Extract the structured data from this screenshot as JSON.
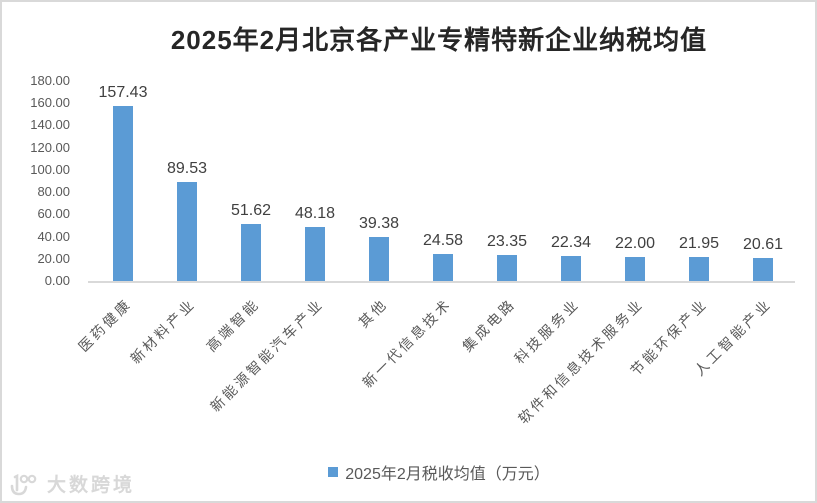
{
  "title": "2025年2月北京各产业专精特新企业纳税均值",
  "legend": {
    "label": "2025年2月税收均值（万元）"
  },
  "watermark": {
    "text": "大数跨境"
  },
  "colors": {
    "bar": "#5b9bd5",
    "axis_line": "#d9d9d9",
    "tick_text": "#595959",
    "data_label": "#404040",
    "title_text": "#262626",
    "frame": "#d9d9d9",
    "watermark": "#d8d8d8"
  },
  "chart_data": {
    "type": "bar",
    "title": "2025年2月北京各产业专精特新企业纳税均值",
    "categories": [
      "医药健康",
      "新材料产业",
      "高端智能",
      "新能源智能汽车产业",
      "其他",
      "新一代信息技术",
      "集成电路",
      "科技服务业",
      "软件和信息技术服务业",
      "节能环保产业",
      "人工智能产业"
    ],
    "values": [
      157.43,
      89.53,
      51.62,
      48.18,
      39.38,
      24.58,
      23.35,
      22.34,
      22.0,
      21.95,
      20.61
    ],
    "value_labels": [
      "157.43",
      "89.53",
      "51.62",
      "48.18",
      "39.38",
      "24.58",
      "23.35",
      "22.34",
      "22.00",
      "21.95",
      "20.61"
    ],
    "series": [
      {
        "name": "2025年2月税收均值（万元）",
        "values": [
          157.43,
          89.53,
          51.62,
          48.18,
          39.38,
          24.58,
          23.35,
          22.34,
          22.0,
          21.95,
          20.61
        ]
      }
    ],
    "xlabel": "",
    "ylabel": "",
    "ylim": [
      0,
      180
    ],
    "yticks": [
      180,
      160,
      140,
      120,
      100,
      80,
      60,
      40,
      20,
      0
    ],
    "ytick_labels": [
      "180.00",
      "160.00",
      "140.00",
      "120.00",
      "100.00",
      "80.00",
      "60.00",
      "40.00",
      "20.00",
      "0.00"
    ],
    "grid": false,
    "legend_position": "bottom",
    "data_labels_position": "outside-end",
    "category_label_rotation_deg": 45
  }
}
